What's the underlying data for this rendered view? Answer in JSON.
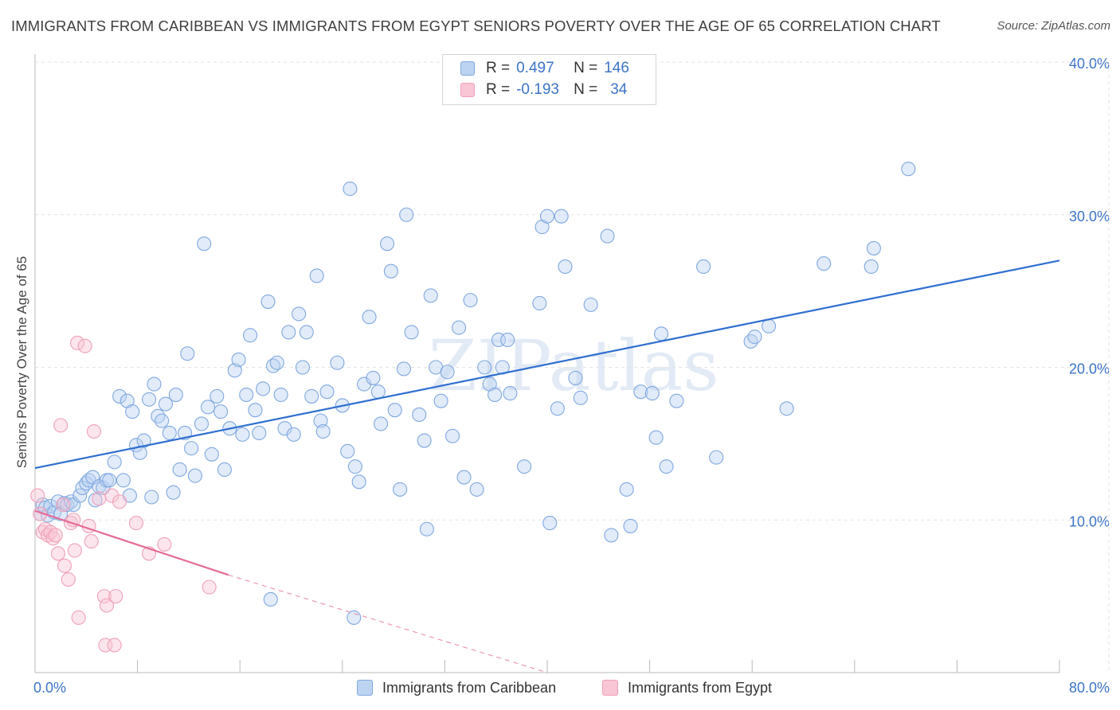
{
  "title": "IMMIGRANTS FROM CARIBBEAN VS IMMIGRANTS FROM EGYPT SENIORS POVERTY OVER THE AGE OF 65 CORRELATION CHART",
  "source": "Source: ZipAtlas.com",
  "watermark": "ZIPatlas",
  "legend": {
    "rows": [
      {
        "r_label": "R =",
        "r_value": "0.497",
        "n_label": "N =",
        "n_value": "146"
      },
      {
        "r_label": "R =",
        "r_value": "-0.193",
        "n_label": "N =",
        "n_value": "34"
      }
    ]
  },
  "chart_data": {
    "type": "scatter",
    "title": "IMMIGRANTS FROM CARIBBEAN VS IMMIGRANTS FROM EGYPT SENIORS POVERTY OVER THE AGE OF 65 CORRELATION CHART",
    "xlabel": "",
    "ylabel": "Seniors Poverty Over the Age of 65",
    "xlim": [
      0,
      80
    ],
    "ylim": [
      0,
      40
    ],
    "x_tick_labels": [
      "0.0%",
      "80.0%"
    ],
    "y_ticks": [
      10,
      20,
      30,
      40
    ],
    "y_tick_labels": [
      "10.0%",
      "20.0%",
      "30.0%",
      "40.0%"
    ],
    "grid": true,
    "series": [
      {
        "name": "Immigrants from Caribbean",
        "color": "#7fa8e0",
        "fill": "#bcd3f1",
        "R": 0.497,
        "N": 146,
        "trend": {
          "x": [
            0,
            80
          ],
          "y": [
            13.4,
            27.0
          ],
          "color": "#2f6fd0"
        },
        "points": [
          [
            0.4,
            10.4
          ],
          [
            0.6,
            11.0
          ],
          [
            0.8,
            10.8
          ],
          [
            1.0,
            10.3
          ],
          [
            1.2,
            10.9
          ],
          [
            1.5,
            10.5
          ],
          [
            1.8,
            11.2
          ],
          [
            2.0,
            10.4
          ],
          [
            2.3,
            11.1
          ],
          [
            2.5,
            11.0
          ],
          [
            2.8,
            11.2
          ],
          [
            3.0,
            11.0
          ],
          [
            3.5,
            11.6
          ],
          [
            3.7,
            12.1
          ],
          [
            4.0,
            12.4
          ],
          [
            4.2,
            12.6
          ],
          [
            4.5,
            12.8
          ],
          [
            4.7,
            11.3
          ],
          [
            5.0,
            12.2
          ],
          [
            5.3,
            12.1
          ],
          [
            5.6,
            12.6
          ],
          [
            5.8,
            12.6
          ],
          [
            6.2,
            13.8
          ],
          [
            6.6,
            18.1
          ],
          [
            6.9,
            12.6
          ],
          [
            7.2,
            17.8
          ],
          [
            7.4,
            11.6
          ],
          [
            7.6,
            17.1
          ],
          [
            7.9,
            14.9
          ],
          [
            8.2,
            14.4
          ],
          [
            8.5,
            15.2
          ],
          [
            8.9,
            17.9
          ],
          [
            9.1,
            11.5
          ],
          [
            9.3,
            18.9
          ],
          [
            9.6,
            16.8
          ],
          [
            9.9,
            16.5
          ],
          [
            10.2,
            17.6
          ],
          [
            10.5,
            15.7
          ],
          [
            10.8,
            11.8
          ],
          [
            11.0,
            18.2
          ],
          [
            11.3,
            13.3
          ],
          [
            11.7,
            15.7
          ],
          [
            11.9,
            20.9
          ],
          [
            12.2,
            14.7
          ],
          [
            12.5,
            12.9
          ],
          [
            13.0,
            16.3
          ],
          [
            13.2,
            28.1
          ],
          [
            13.5,
            17.4
          ],
          [
            13.8,
            14.3
          ],
          [
            14.2,
            18.1
          ],
          [
            14.5,
            17.1
          ],
          [
            14.8,
            13.3
          ],
          [
            15.2,
            16.0
          ],
          [
            15.6,
            19.8
          ],
          [
            15.9,
            20.5
          ],
          [
            16.2,
            15.6
          ],
          [
            16.5,
            18.2
          ],
          [
            16.8,
            22.1
          ],
          [
            17.2,
            17.2
          ],
          [
            17.5,
            15.7
          ],
          [
            17.8,
            18.6
          ],
          [
            18.2,
            24.3
          ],
          [
            18.6,
            20.1
          ],
          [
            18.9,
            20.3
          ],
          [
            19.2,
            18.2
          ],
          [
            19.5,
            16.0
          ],
          [
            19.8,
            22.3
          ],
          [
            20.2,
            15.6
          ],
          [
            20.6,
            23.5
          ],
          [
            20.9,
            20.0
          ],
          [
            21.2,
            22.3
          ],
          [
            21.6,
            18.1
          ],
          [
            22.0,
            26.0
          ],
          [
            22.3,
            16.5
          ],
          [
            22.5,
            15.8
          ],
          [
            22.8,
            18.4
          ],
          [
            23.6,
            20.3
          ],
          [
            24.0,
            17.5
          ],
          [
            24.4,
            14.5
          ],
          [
            24.6,
            31.7
          ],
          [
            25.0,
            13.5
          ],
          [
            25.3,
            12.5
          ],
          [
            25.7,
            18.9
          ],
          [
            26.1,
            23.3
          ],
          [
            26.4,
            19.3
          ],
          [
            26.8,
            18.4
          ],
          [
            27.0,
            16.3
          ],
          [
            27.5,
            28.1
          ],
          [
            27.8,
            26.3
          ],
          [
            28.1,
            17.2
          ],
          [
            28.5,
            12.0
          ],
          [
            28.8,
            19.9
          ],
          [
            29.0,
            30.0
          ],
          [
            29.4,
            22.3
          ],
          [
            30.0,
            16.9
          ],
          [
            30.4,
            15.2
          ],
          [
            30.9,
            24.7
          ],
          [
            30.6,
            9.4
          ],
          [
            31.3,
            20.0
          ],
          [
            31.7,
            17.8
          ],
          [
            32.2,
            19.7
          ],
          [
            32.6,
            15.5
          ],
          [
            33.1,
            22.6
          ],
          [
            33.5,
            12.8
          ],
          [
            34.0,
            24.4
          ],
          [
            34.5,
            12.0
          ],
          [
            35.1,
            20.0
          ],
          [
            35.5,
            18.9
          ],
          [
            35.9,
            18.2
          ],
          [
            36.2,
            21.8
          ],
          [
            36.5,
            20.0
          ],
          [
            36.9,
            21.8
          ],
          [
            37.1,
            18.3
          ],
          [
            38.2,
            13.5
          ],
          [
            39.4,
            24.2
          ],
          [
            39.6,
            29.2
          ],
          [
            40.0,
            29.9
          ],
          [
            40.2,
            9.8
          ],
          [
            40.8,
            17.3
          ],
          [
            41.1,
            29.9
          ],
          [
            41.4,
            26.6
          ],
          [
            42.2,
            19.3
          ],
          [
            42.6,
            18.0
          ],
          [
            43.4,
            24.1
          ],
          [
            44.7,
            28.6
          ],
          [
            45.0,
            9.0
          ],
          [
            46.2,
            12.0
          ],
          [
            46.5,
            9.6
          ],
          [
            47.3,
            18.4
          ],
          [
            48.2,
            18.3
          ],
          [
            48.5,
            15.4
          ],
          [
            48.9,
            22.2
          ],
          [
            49.3,
            13.5
          ],
          [
            50.1,
            17.8
          ],
          [
            52.2,
            26.6
          ],
          [
            53.2,
            14.1
          ],
          [
            55.9,
            21.7
          ],
          [
            56.2,
            22.0
          ],
          [
            57.3,
            22.7
          ],
          [
            58.7,
            17.3
          ],
          [
            61.6,
            26.8
          ],
          [
            65.3,
            26.6
          ],
          [
            65.5,
            27.8
          ],
          [
            68.2,
            33.0
          ],
          [
            18.4,
            4.8
          ],
          [
            24.9,
            3.6
          ]
        ]
      },
      {
        "name": "Immigrants from Egypt",
        "color": "#f0a0b8",
        "fill": "#f8c6d5",
        "R": -0.193,
        "N": 34,
        "trend": {
          "x": [
            0,
            15.1
          ],
          "y": [
            10.6,
            6.4
          ],
          "dash_x": [
            15.1,
            40
          ],
          "dash_y": [
            6.4,
            0
          ],
          "color": "#e56a95"
        },
        "points": [
          [
            0.2,
            11.6
          ],
          [
            0.4,
            10.4
          ],
          [
            0.6,
            9.2
          ],
          [
            0.8,
            9.4
          ],
          [
            1.0,
            9.0
          ],
          [
            1.2,
            9.2
          ],
          [
            1.4,
            8.8
          ],
          [
            1.6,
            9.0
          ],
          [
            1.8,
            7.8
          ],
          [
            2.0,
            16.2
          ],
          [
            2.2,
            11.0
          ],
          [
            2.3,
            7.0
          ],
          [
            2.6,
            6.1
          ],
          [
            2.8,
            9.8
          ],
          [
            3.0,
            10.0
          ],
          [
            3.1,
            8.0
          ],
          [
            3.3,
            21.6
          ],
          [
            3.4,
            3.6
          ],
          [
            3.9,
            21.4
          ],
          [
            4.2,
            9.6
          ],
          [
            4.4,
            8.6
          ],
          [
            4.6,
            15.8
          ],
          [
            5.0,
            11.4
          ],
          [
            5.4,
            5.0
          ],
          [
            5.5,
            1.8
          ],
          [
            5.6,
            4.4
          ],
          [
            6.0,
            11.6
          ],
          [
            6.3,
            5.0
          ],
          [
            6.6,
            11.2
          ],
          [
            7.9,
            9.8
          ],
          [
            8.9,
            7.8
          ],
          [
            10.1,
            8.4
          ],
          [
            13.6,
            5.6
          ],
          [
            6.2,
            1.8
          ]
        ]
      }
    ]
  },
  "bottom_legend": {
    "items": [
      {
        "label": "Immigrants from Caribbean"
      },
      {
        "label": "Immigrants from Egypt"
      }
    ]
  }
}
